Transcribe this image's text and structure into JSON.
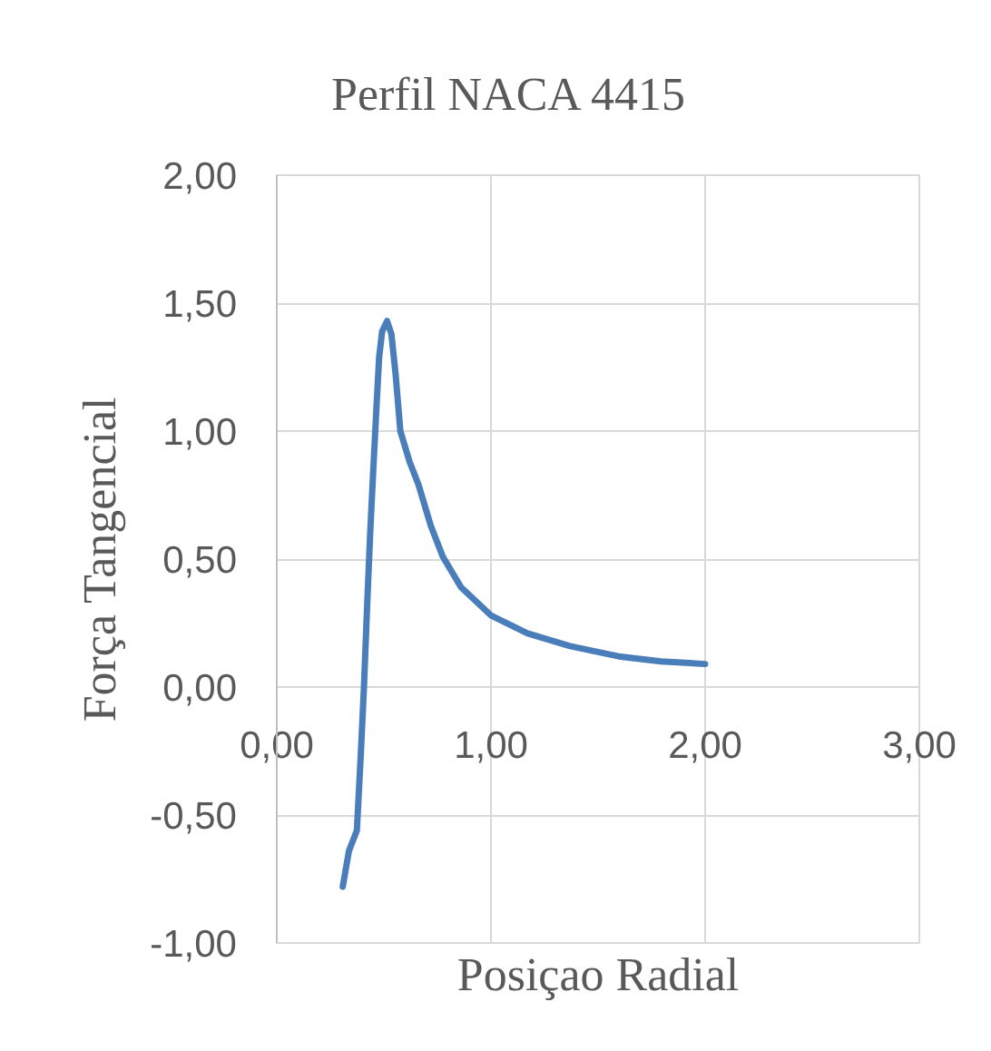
{
  "chart_data": {
    "type": "line",
    "title": "Perfil NACA 4415",
    "xlabel": "Posiçao Radial",
    "ylabel": "Força Tangencial",
    "x": [
      0.308,
      0.337,
      0.374,
      0.393,
      0.407,
      0.422,
      0.436,
      0.45,
      0.464,
      0.478,
      0.492,
      0.515,
      0.535,
      0.555,
      0.577,
      0.62,
      0.662,
      0.719,
      0.775,
      0.86,
      1.0,
      1.171,
      1.369,
      1.596,
      1.794,
      2.0
    ],
    "series": [
      {
        "color": "#4a7ebb",
        "values": [
          -0.78,
          -0.64,
          -0.56,
          -0.25,
          0.0,
          0.32,
          0.6,
          0.84,
          1.07,
          1.29,
          1.39,
          1.43,
          1.38,
          1.22,
          1.0,
          0.88,
          0.79,
          0.63,
          0.51,
          0.39,
          0.28,
          0.21,
          0.16,
          0.12,
          0.1,
          0.09
        ]
      }
    ],
    "xlim": [
      0,
      3
    ],
    "ylim": [
      -1,
      2
    ],
    "xticks": [
      {
        "value": 0,
        "label": "0,00"
      },
      {
        "value": 1,
        "label": "1,00"
      },
      {
        "value": 2,
        "label": "2,00"
      },
      {
        "value": 3,
        "label": "3,00"
      }
    ],
    "yticks": [
      {
        "value": -1,
        "label": "-1,00"
      },
      {
        "value": -0.5,
        "label": "-0,50"
      },
      {
        "value": 0,
        "label": "0,00"
      },
      {
        "value": 0.5,
        "label": "0,50"
      },
      {
        "value": 1,
        "label": "1,00"
      },
      {
        "value": 1.5,
        "label": "1,50"
      },
      {
        "value": 2,
        "label": "2,00"
      }
    ],
    "grid": true
  }
}
